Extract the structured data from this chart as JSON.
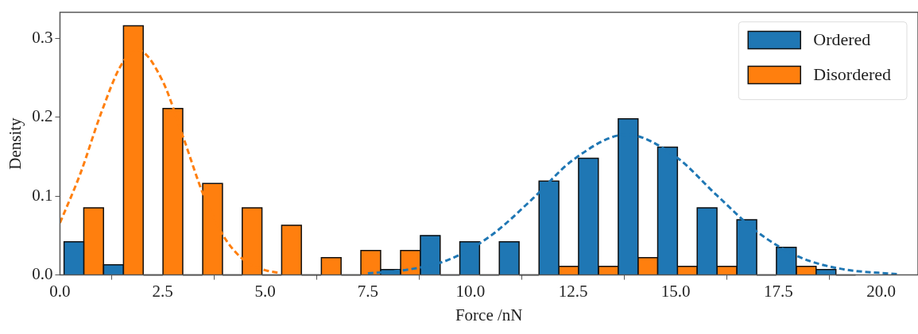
{
  "chart_data": {
    "type": "histogram",
    "xlabel": "Force /nN",
    "ylabel": "Density",
    "bins": [
      0.1,
      1.06,
      2.03,
      2.99,
      3.96,
      4.92,
      5.88,
      6.85,
      7.81,
      8.78,
      9.74,
      10.7,
      11.67,
      12.63,
      13.6,
      14.56,
      15.52,
      16.49,
      17.45,
      18.42,
      19.38
    ],
    "series": [
      {
        "name": "Ordered",
        "color": "#1f77b4",
        "values": [
          0.042,
          0.013,
          0,
          0,
          0,
          0,
          0,
          0,
          0.007,
          0.05,
          0.042,
          0.042,
          0.119,
          0.148,
          0.198,
          0.162,
          0.085,
          0.07,
          0.035,
          0.007
        ]
      },
      {
        "name": "Disordered",
        "color": "#ff7f0e",
        "values": [
          0.085,
          0.316,
          0.211,
          0.116,
          0.085,
          0.063,
          0.022,
          0.031,
          0.031,
          0,
          0,
          0,
          0.011,
          0.011,
          0.022,
          0.011,
          0.011,
          0,
          0.011,
          0
        ]
      },
      {
        "type": "line",
        "color": "#ff7f0e",
        "line_style": "dashed",
        "x": [
          0,
          0.5,
          1,
          1.5,
          1.9,
          2.5,
          3,
          3.5,
          4,
          4.5,
          5,
          5.3
        ],
        "values": [
          0.066,
          0.129,
          0.205,
          0.267,
          0.285,
          0.246,
          0.175,
          0.101,
          0.048,
          0.018,
          0.006,
          0.003
        ]
      },
      {
        "type": "line",
        "color": "#1f77b4",
        "line_style": "dashed",
        "x": [
          7.5,
          8.5,
          9.5,
          10.5,
          11.5,
          12.5,
          13.8,
          15,
          16,
          17,
          18,
          19,
          20.4
        ],
        "values": [
          0.002,
          0.007,
          0.02,
          0.05,
          0.096,
          0.146,
          0.178,
          0.15,
          0.101,
          0.054,
          0.023,
          0.008,
          0.001
        ]
      }
    ],
    "marker": "none",
    "xlim": [
      0,
      20.9
    ],
    "ylim": [
      0,
      0.333
    ],
    "xticks": [
      {
        "value": 0,
        "label": "0.0"
      },
      {
        "value": 2.5,
        "label": "2.5"
      },
      {
        "value": 5,
        "label": "5.0"
      },
      {
        "value": 7.5,
        "label": "7.5"
      },
      {
        "value": 10,
        "label": "10.0"
      },
      {
        "value": 12.5,
        "label": "12.5"
      },
      {
        "value": 15,
        "label": "15.0"
      },
      {
        "value": 17.5,
        "label": "17.5"
      },
      {
        "value": 20,
        "label": "20.0"
      }
    ],
    "yticks": [
      {
        "value": 0,
        "label": "0.0"
      },
      {
        "value": 0.1,
        "label": "0.1"
      },
      {
        "value": 0.2,
        "label": "0.2"
      },
      {
        "value": 0.3,
        "label": "0.3"
      }
    ],
    "legend": "top right"
  }
}
